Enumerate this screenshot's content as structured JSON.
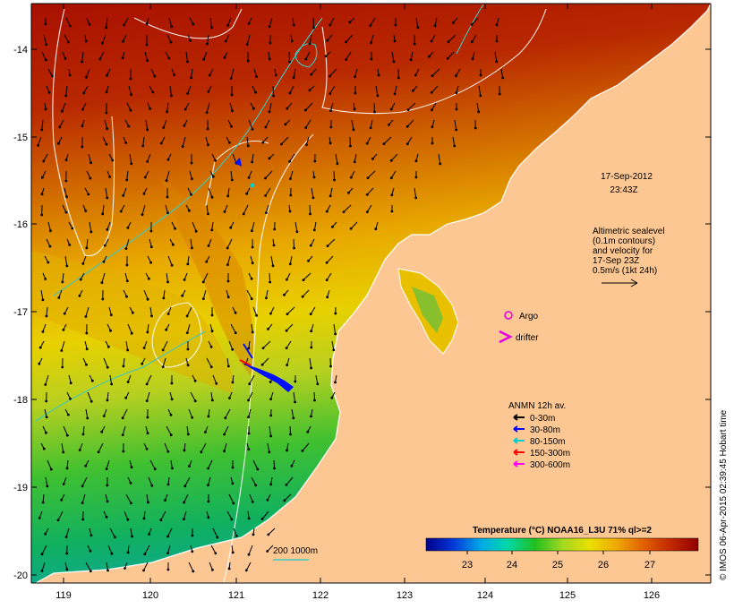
{
  "map": {
    "timestamp_line1": "17-Sep-2012",
    "timestamp_line2": "23:43Z",
    "altimetry_lines": [
      "Altimetric sealevel",
      "(0.1m contours)",
      "and velocity for",
      "17-Sep 23Z",
      "0.5m/s (1kt 24h)"
    ],
    "argo_label": "Argo",
    "drifter_label": "drifter",
    "scale_bar_label": "200  1000m",
    "credit": "© IMOS 06-Apr-2015 02:39:45 Hobart time",
    "lon_ticks": [
      "119",
      "120",
      "121",
      "122",
      "123",
      "124",
      "125",
      "126"
    ],
    "lat_ticks": [
      "-14",
      "-15",
      "-16",
      "-17",
      "-18",
      "-19",
      "-20"
    ]
  },
  "anmn_legend": {
    "title": "ANMN 12h av.",
    "items": [
      {
        "label": "0-30m",
        "color": "#000000"
      },
      {
        "label": "30-80m",
        "color": "#0000ff"
      },
      {
        "label": "80-150m",
        "color": "#00d0d0"
      },
      {
        "label": "150-300m",
        "color": "#ff0000"
      },
      {
        "label": "300-600m",
        "color": "#ff00ff"
      }
    ]
  },
  "colorbar": {
    "title": "Temperature (°C) NOAA16_L3U 71% ql>=2",
    "tick_labels": [
      "23",
      "24",
      "25",
      "26",
      "27"
    ],
    "colors": [
      "#00008a",
      "#0038d8",
      "#00a8e8",
      "#00d8a8",
      "#20c020",
      "#a0d820",
      "#e8e000",
      "#f0a800",
      "#e06000",
      "#c02800",
      "#900000"
    ]
  }
}
